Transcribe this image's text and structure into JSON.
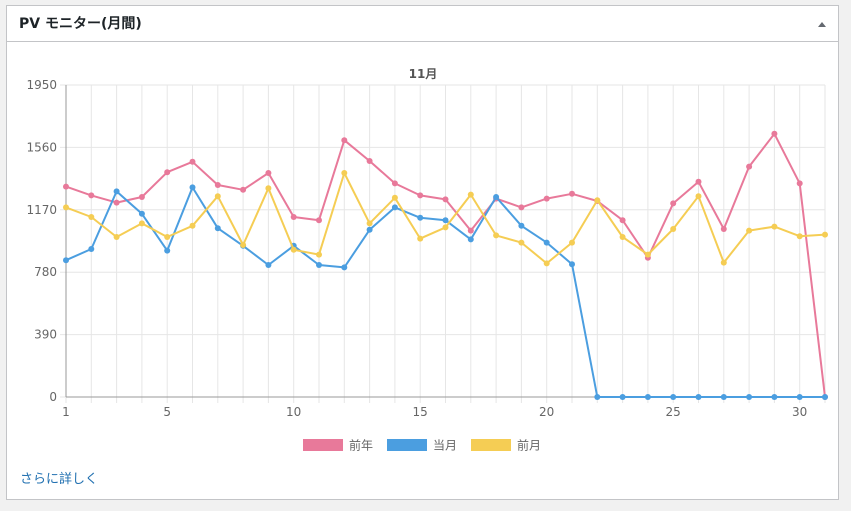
{
  "widget": {
    "title": "PV モニター(月間)",
    "toggle_icon": "triangle-up-icon",
    "more_link": "さらに詳しく"
  },
  "chart_data": {
    "type": "line",
    "title": "11月",
    "x": [
      1,
      2,
      3,
      4,
      5,
      6,
      7,
      8,
      9,
      10,
      11,
      12,
      13,
      14,
      15,
      16,
      17,
      18,
      19,
      20,
      21,
      22,
      23,
      24,
      25,
      26,
      27,
      28,
      29,
      30,
      31
    ],
    "xticks": [
      "1",
      "5",
      "10",
      "15",
      "20",
      "25",
      "30"
    ],
    "xtick_values": [
      1,
      5,
      10,
      15,
      20,
      25,
      30
    ],
    "ylim": [
      0,
      1950
    ],
    "yticks": [
      "0",
      "390",
      "780",
      "1170",
      "1560",
      "1950"
    ],
    "ytick_values": [
      0,
      390,
      780,
      1170,
      1560,
      1950
    ],
    "grid": true,
    "legend_position": "bottom",
    "series": [
      {
        "name": "前年",
        "color": "#e8799a",
        "values": [
          1315,
          1260,
          1215,
          1250,
          1405,
          1470,
          1325,
          1295,
          1400,
          1125,
          1105,
          1605,
          1475,
          1335,
          1260,
          1235,
          1040,
          1240,
          1185,
          1240,
          1270,
          1225,
          1105,
          870,
          1210,
          1345,
          1050,
          1440,
          1645,
          1335,
          0
        ]
      },
      {
        "name": "当月",
        "color": "#4b9ee0",
        "values": [
          855,
          925,
          1285,
          1145,
          915,
          1310,
          1055,
          945,
          825,
          945,
          825,
          810,
          1045,
          1185,
          1120,
          1105,
          985,
          1250,
          1070,
          965,
          830,
          0,
          0,
          0,
          0,
          0,
          0,
          0,
          0,
          0,
          0
        ]
      },
      {
        "name": "前月",
        "color": "#f5cd54",
        "values": [
          1185,
          1125,
          1000,
          1085,
          1000,
          1070,
          1255,
          950,
          1305,
          920,
          890,
          1400,
          1085,
          1245,
          990,
          1060,
          1265,
          1010,
          965,
          835,
          965,
          1230,
          1000,
          890,
          1050,
          1255,
          840,
          1040,
          1065,
          1005,
          1015
        ]
      }
    ]
  }
}
